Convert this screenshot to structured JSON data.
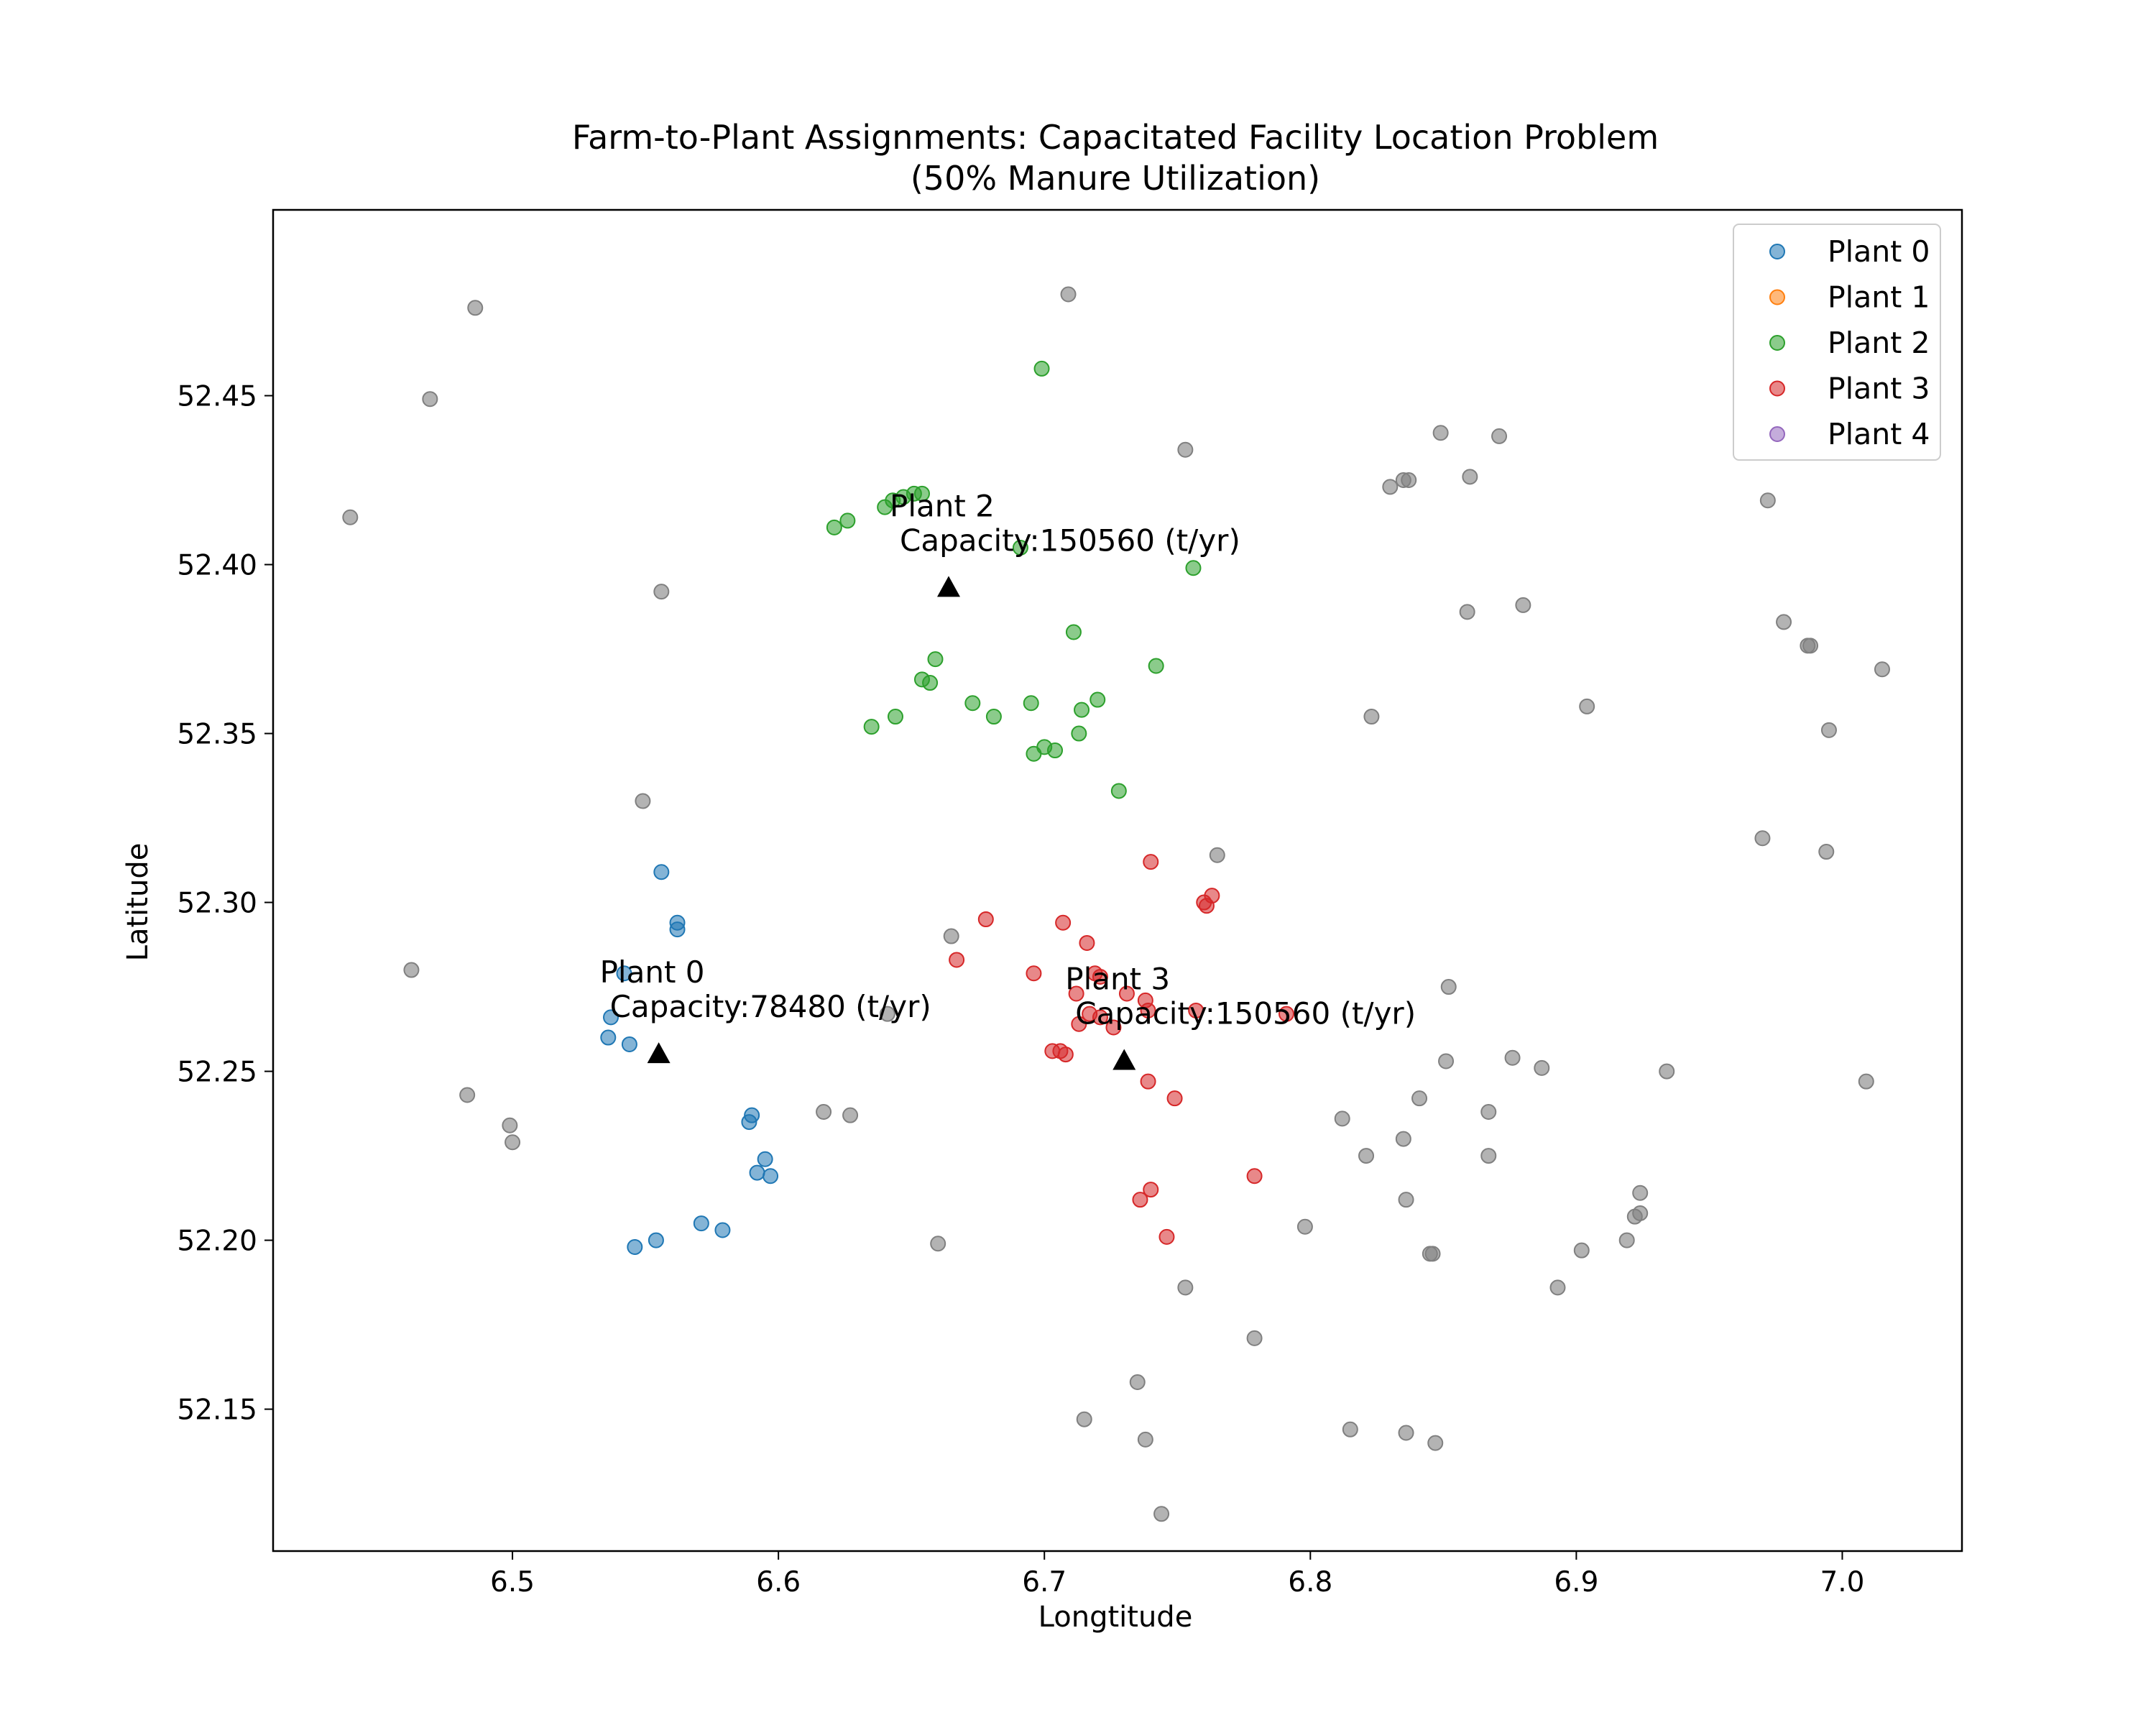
{
  "chart_data": {
    "type": "scatter",
    "title": "Farm-to-Plant Assignments: Capacitated Facility Location Problem",
    "subtitle": "(50% Manure Utilization)",
    "xlabel": "Longtitude",
    "ylabel": "Latitude",
    "xlim": [
      6.41,
      7.045
    ],
    "ylim": [
      52.108,
      52.505
    ],
    "x_ticks": [
      "6.5",
      "6.6",
      "6.7",
      "6.8",
      "6.9",
      "7.0"
    ],
    "y_ticks": [
      "52.15",
      "52.20",
      "52.25",
      "52.30",
      "52.35",
      "52.40",
      "52.45"
    ],
    "grid": false,
    "legend": {
      "position": "top-right",
      "entries": [
        "Plant 0",
        "Plant 1",
        "Plant 2",
        "Plant 3",
        "Plant 4"
      ]
    },
    "colors": {
      "plant0": "#1f77b4",
      "plant1": "#ff7f0e",
      "plant2": "#2ca02c",
      "plant3": "#d62728",
      "plant4": "#9467bd",
      "unassigned": "#808080",
      "plant_marker": "#000000"
    },
    "series": [
      {
        "name": "Plant 0",
        "color": "#1f77b4",
        "points": [
          [
            6.556,
            52.309
          ],
          [
            6.562,
            52.294
          ],
          [
            6.562,
            52.292
          ],
          [
            6.542,
            52.279
          ],
          [
            6.537,
            52.266
          ],
          [
            6.536,
            52.26
          ],
          [
            6.544,
            52.258
          ],
          [
            6.59,
            52.237
          ],
          [
            6.589,
            52.235
          ],
          [
            6.595,
            52.224
          ],
          [
            6.592,
            52.22
          ],
          [
            6.597,
            52.219
          ],
          [
            6.571,
            52.205
          ],
          [
            6.579,
            52.203
          ],
          [
            6.554,
            52.2
          ],
          [
            6.546,
            52.198
          ]
        ]
      },
      {
        "name": "Plant 1",
        "color": "#ff7f0e",
        "points": []
      },
      {
        "name": "Plant 2",
        "color": "#2ca02c",
        "points": [
          [
            6.699,
            52.458
          ],
          [
            6.621,
            52.411
          ],
          [
            6.626,
            52.413
          ],
          [
            6.64,
            52.417
          ],
          [
            6.643,
            52.419
          ],
          [
            6.647,
            52.42
          ],
          [
            6.651,
            52.421
          ],
          [
            6.654,
            52.421
          ],
          [
            6.691,
            52.405
          ],
          [
            6.756,
            52.399
          ],
          [
            6.711,
            52.38
          ],
          [
            6.742,
            52.37
          ],
          [
            6.659,
            52.372
          ],
          [
            6.654,
            52.366
          ],
          [
            6.657,
            52.365
          ],
          [
            6.673,
            52.359
          ],
          [
            6.695,
            52.359
          ],
          [
            6.714,
            52.357
          ],
          [
            6.72,
            52.36
          ],
          [
            6.681,
            52.355
          ],
          [
            6.644,
            52.355
          ],
          [
            6.635,
            52.352
          ],
          [
            6.713,
            52.35
          ],
          [
            6.7,
            52.346
          ],
          [
            6.704,
            52.345
          ],
          [
            6.696,
            52.344
          ],
          [
            6.728,
            52.333
          ]
        ]
      },
      {
        "name": "Plant 3",
        "color": "#d62728",
        "points": [
          [
            6.74,
            52.312
          ],
          [
            6.763,
            52.302
          ],
          [
            6.76,
            52.3
          ],
          [
            6.761,
            52.299
          ],
          [
            6.678,
            52.295
          ],
          [
            6.707,
            52.294
          ],
          [
            6.716,
            52.288
          ],
          [
            6.667,
            52.283
          ],
          [
            6.696,
            52.279
          ],
          [
            6.719,
            52.279
          ],
          [
            6.721,
            52.278
          ],
          [
            6.712,
            52.273
          ],
          [
            6.731,
            52.273
          ],
          [
            6.738,
            52.271
          ],
          [
            6.739,
            52.268
          ],
          [
            6.757,
            52.268
          ],
          [
            6.717,
            52.267
          ],
          [
            6.721,
            52.266
          ],
          [
            6.791,
            52.267
          ],
          [
            6.713,
            52.264
          ],
          [
            6.726,
            52.263
          ],
          [
            6.703,
            52.256
          ],
          [
            6.706,
            52.256
          ],
          [
            6.708,
            52.255
          ],
          [
            6.739,
            52.247
          ],
          [
            6.749,
            52.242
          ],
          [
            6.779,
            52.219
          ],
          [
            6.74,
            52.215
          ],
          [
            6.736,
            52.212
          ],
          [
            6.746,
            52.201
          ]
        ]
      },
      {
        "name": "Plant 4",
        "color": "#9467bd",
        "points": []
      }
    ],
    "unassigned_points": [
      [
        6.709,
        52.48
      ],
      [
        6.486,
        52.476
      ],
      [
        6.469,
        52.449
      ],
      [
        6.439,
        52.414
      ],
      [
        6.556,
        52.392
      ],
      [
        6.753,
        52.434
      ],
      [
        6.849,
        52.439
      ],
      [
        6.871,
        52.438
      ],
      [
        6.83,
        52.423
      ],
      [
        6.835,
        52.425
      ],
      [
        6.837,
        52.425
      ],
      [
        6.86,
        52.426
      ],
      [
        6.972,
        52.419
      ],
      [
        6.859,
        52.386
      ],
      [
        6.88,
        52.388
      ],
      [
        6.978,
        52.383
      ],
      [
        6.988,
        52.376
      ],
      [
        6.987,
        52.376
      ],
      [
        7.015,
        52.369
      ],
      [
        6.904,
        52.358
      ],
      [
        6.823,
        52.355
      ],
      [
        6.995,
        52.351
      ],
      [
        6.549,
        52.33
      ],
      [
        6.97,
        52.319
      ],
      [
        6.994,
        52.315
      ],
      [
        6.765,
        52.314
      ],
      [
        6.462,
        52.28
      ],
      [
        6.665,
        52.29
      ],
      [
        6.852,
        52.275
      ],
      [
        6.641,
        52.267
      ],
      [
        6.851,
        52.253
      ],
      [
        6.876,
        52.254
      ],
      [
        6.887,
        52.251
      ],
      [
        6.934,
        52.25
      ],
      [
        7.009,
        52.247
      ],
      [
        6.483,
        52.243
      ],
      [
        6.841,
        52.242
      ],
      [
        6.499,
        52.234
      ],
      [
        6.617,
        52.238
      ],
      [
        6.627,
        52.237
      ],
      [
        6.812,
        52.236
      ],
      [
        6.867,
        52.238
      ],
      [
        6.5,
        52.229
      ],
      [
        6.835,
        52.23
      ],
      [
        6.821,
        52.225
      ],
      [
        6.867,
        52.225
      ],
      [
        6.924,
        52.214
      ],
      [
        6.836,
        52.212
      ],
      [
        6.924,
        52.208
      ],
      [
        6.922,
        52.207
      ],
      [
        6.798,
        52.204
      ],
      [
        6.919,
        52.2
      ],
      [
        6.66,
        52.199
      ],
      [
        6.902,
        52.197
      ],
      [
        6.845,
        52.196
      ],
      [
        6.846,
        52.196
      ],
      [
        6.893,
        52.186
      ],
      [
        6.753,
        52.186
      ],
      [
        6.779,
        52.171
      ],
      [
        6.735,
        52.158
      ],
      [
        6.715,
        52.147
      ],
      [
        6.815,
        52.144
      ],
      [
        6.836,
        52.143
      ],
      [
        6.738,
        52.141
      ],
      [
        6.847,
        52.14
      ],
      [
        6.744,
        52.119
      ]
    ],
    "plants": [
      {
        "name": "Plant 0",
        "capacity_label": "Capacity:78480 (t/yr)",
        "x": 6.555,
        "y": 52.255
      },
      {
        "name": "Plant 2",
        "capacity_label": "Capacity:150560 (t/yr)",
        "x": 6.664,
        "y": 52.393
      },
      {
        "name": "Plant 3",
        "capacity_label": "Capacity:150560 (t/yr)",
        "x": 6.73,
        "y": 52.253
      }
    ]
  }
}
